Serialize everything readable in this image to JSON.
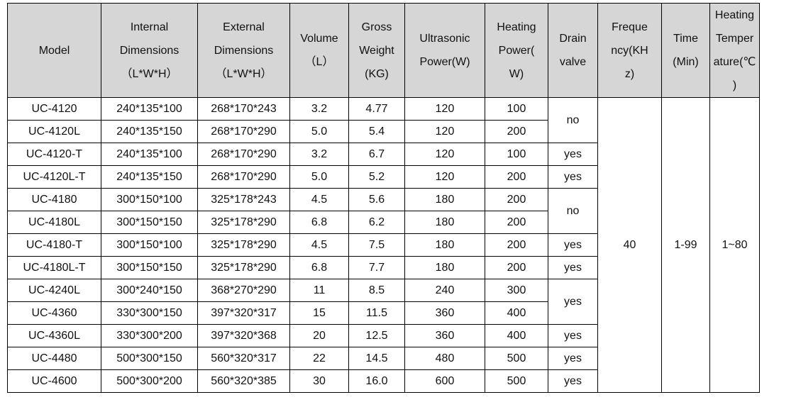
{
  "table": {
    "header": [
      "Model",
      "Internal\nDimensions\n（L*W*H）",
      "External\nDimensions\n（L*W*H）",
      "Volume\n（L）",
      "Gross\nWeight\n(KG)",
      "Ultrasonic\nPower(W)",
      "Heating\nPower(\nW)",
      "Drain\nvalve",
      "Freque\nncy(KH\nz)",
      "Time\n(Min)",
      "Heating\nTemper\nature(℃\n)"
    ],
    "rows": [
      [
        "UC-4120",
        "240*135*100",
        "268*170*243",
        "3.2",
        "4.77",
        "120",
        "100",
        "no"
      ],
      [
        "UC-4120L",
        "240*135*150",
        "268*170*290",
        "5.0",
        "5.4",
        "120",
        "200",
        null
      ],
      [
        "UC-4120-T",
        "240*135*100",
        "268*170*290",
        "3.2",
        "6.7",
        "120",
        "100",
        "yes"
      ],
      [
        "UC-4120L-T",
        "240*135*150",
        "268*170*290",
        "5.0",
        "5.2",
        "120",
        "200",
        "yes"
      ],
      [
        "UC-4180",
        "300*150*100",
        "325*178*243",
        "4.5",
        "5.6",
        "180",
        "200",
        "no"
      ],
      [
        "UC-4180L",
        "300*150*150",
        "325*178*290",
        "6.8",
        "6.2",
        "180",
        "200",
        null
      ],
      [
        "UC-4180-T",
        "300*150*100",
        "325*178*290",
        "4.5",
        "7.5",
        "180",
        "200",
        "yes"
      ],
      [
        "UC-4180L-T",
        "300*150*150",
        "325*178*290",
        "6.8",
        "7.7",
        "180",
        "200",
        "yes"
      ],
      [
        "UC-4240L",
        "300*240*150",
        "368*270*290",
        "11",
        "8.5",
        "240",
        "300",
        "yes"
      ],
      [
        "UC-4360",
        "330*300*150",
        "397*320*317",
        "15",
        "11.5",
        "360",
        "400",
        null
      ],
      [
        "UC-4360L",
        "330*300*200",
        "397*320*368",
        "20",
        "12.5",
        "360",
        "400",
        "yes"
      ],
      [
        "UC-4480",
        "500*300*150",
        "560*320*317",
        "22",
        "14.5",
        "480",
        "500",
        "yes"
      ],
      [
        "UC-4600",
        "500*300*200",
        "560*320*385",
        "30",
        "16.0",
        "600",
        "500",
        "yes"
      ]
    ],
    "shared": [
      "40",
      "1-99",
      "1~80"
    ]
  }
}
